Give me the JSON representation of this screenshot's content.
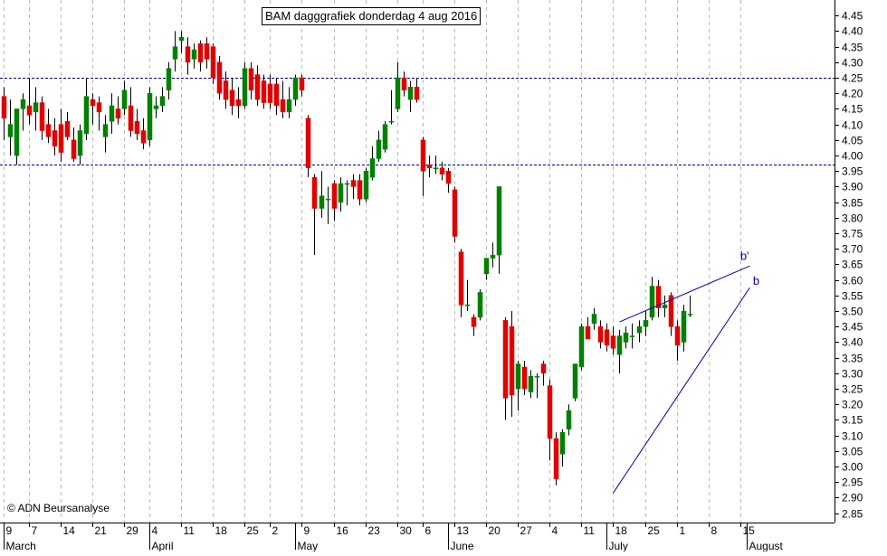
{
  "chart_data": {
    "type": "candlestick",
    "title": "BAM dagggrafiek donderdag 4 aug 2016",
    "copyright": "© ADN Beursanalyse",
    "ylim": [
      2.82,
      4.5
    ],
    "y_ticks": [
      2.85,
      2.9,
      2.95,
      3.0,
      3.05,
      3.1,
      3.15,
      3.2,
      3.25,
      3.3,
      3.35,
      3.4,
      3.45,
      3.5,
      3.55,
      3.6,
      3.65,
      3.7,
      3.75,
      3.8,
      3.85,
      3.9,
      3.95,
      4.0,
      4.05,
      4.1,
      4.15,
      4.2,
      4.25,
      4.3,
      4.35,
      4.4,
      4.45
    ],
    "y_tick_labels": [
      "2.85",
      "2.90",
      "2.95",
      "3.00",
      "3.05",
      "3.10",
      "3.15",
      "3.20",
      "3.25",
      "3.30",
      "3.35",
      "3.40",
      "3.45",
      "3.50",
      "3.55",
      "3.60",
      "3.65",
      "3.70",
      "3.75",
      "3.80",
      "3.85",
      "3.90",
      "3.95",
      "4.00",
      "4.05",
      "4.10",
      "4.15",
      "4.20",
      "4.25",
      "4.30",
      "4.35",
      "4.40",
      "4.45"
    ],
    "x_day_ticks": [
      "9",
      "7",
      "14",
      "21",
      "29",
      "4",
      "11",
      "18",
      "25",
      "2",
      "9",
      "16",
      "23",
      "30",
      "6",
      "13",
      "20",
      "27",
      "4",
      "11",
      "18",
      "25",
      "1",
      "8",
      "15"
    ],
    "x_month_labels": [
      "March",
      "April",
      "May",
      "June",
      "July",
      "August"
    ],
    "colors": {
      "up": "#008000",
      "down": "#e00000",
      "line": "#0000b0",
      "dashed": "#000080",
      "grid": "#b8b8b8"
    },
    "horizontal_lines": [
      4.25,
      3.97
    ],
    "annotations": [
      {
        "label": "b'",
        "x": 116,
        "y": 3.665
      },
      {
        "label": "b",
        "x": 118,
        "y": 3.585
      }
    ],
    "trendlines": [
      {
        "x1": 97,
        "y1": 3.465,
        "x2": 117.5,
        "y2": 3.645
      },
      {
        "x1": 96,
        "y1": 2.915,
        "x2": 117.5,
        "y2": 3.575
      }
    ],
    "candles": [
      {
        "o": 4.19,
        "h": 4.22,
        "l": 4.05,
        "c": 4.12
      },
      {
        "o": 4.06,
        "h": 4.18,
        "l": 4.0,
        "c": 4.1
      },
      {
        "o": 4.0,
        "h": 4.15,
        "l": 3.97,
        "c": 4.15
      },
      {
        "o": 4.15,
        "h": 4.2,
        "l": 4.08,
        "c": 4.18
      },
      {
        "o": 4.16,
        "h": 4.25,
        "l": 4.1,
        "c": 4.13
      },
      {
        "o": 4.14,
        "h": 4.22,
        "l": 4.08,
        "c": 4.17
      },
      {
        "o": 4.17,
        "h": 4.19,
        "l": 4.05,
        "c": 4.08
      },
      {
        "o": 4.1,
        "h": 4.15,
        "l": 4.04,
        "c": 4.06
      },
      {
        "o": 4.08,
        "h": 4.12,
        "l": 4.0,
        "c": 4.03
      },
      {
        "o": 4.1,
        "h": 4.15,
        "l": 3.98,
        "c": 4.01
      },
      {
        "o": 4.11,
        "h": 4.14,
        "l": 4.05,
        "c": 4.06
      },
      {
        "o": 4.05,
        "h": 4.09,
        "l": 3.98,
        "c": 3.99
      },
      {
        "o": 4.0,
        "h": 4.1,
        "l": 3.97,
        "c": 4.08
      },
      {
        "o": 4.07,
        "h": 4.25,
        "l": 4.05,
        "c": 4.19
      },
      {
        "o": 4.18,
        "h": 4.2,
        "l": 4.1,
        "c": 4.16
      },
      {
        "o": 4.17,
        "h": 4.19,
        "l": 4.08,
        "c": 4.14
      },
      {
        "o": 4.06,
        "h": 4.13,
        "l": 4.01,
        "c": 4.1
      },
      {
        "o": 4.11,
        "h": 4.2,
        "l": 4.07,
        "c": 4.16
      },
      {
        "o": 4.15,
        "h": 4.19,
        "l": 4.1,
        "c": 4.12
      },
      {
        "o": 4.15,
        "h": 4.24,
        "l": 4.13,
        "c": 4.21
      },
      {
        "o": 4.16,
        "h": 4.22,
        "l": 4.06,
        "c": 4.08
      },
      {
        "o": 4.11,
        "h": 4.15,
        "l": 4.05,
        "c": 4.07
      },
      {
        "o": 4.08,
        "h": 4.12,
        "l": 4.02,
        "c": 4.04
      },
      {
        "o": 4.05,
        "h": 4.22,
        "l": 4.03,
        "c": 4.2
      },
      {
        "o": 4.15,
        "h": 4.19,
        "l": 4.12,
        "c": 4.16
      },
      {
        "o": 4.16,
        "h": 4.22,
        "l": 4.14,
        "c": 4.19
      },
      {
        "o": 4.21,
        "h": 4.3,
        "l": 4.18,
        "c": 4.28
      },
      {
        "o": 4.31,
        "h": 4.4,
        "l": 4.27,
        "c": 4.35
      },
      {
        "o": 4.37,
        "h": 4.4,
        "l": 4.33,
        "c": 4.38
      },
      {
        "o": 4.35,
        "h": 4.38,
        "l": 4.26,
        "c": 4.3
      },
      {
        "o": 4.31,
        "h": 4.36,
        "l": 4.28,
        "c": 4.34
      },
      {
        "o": 4.36,
        "h": 4.37,
        "l": 4.27,
        "c": 4.3
      },
      {
        "o": 4.36,
        "h": 4.38,
        "l": 4.28,
        "c": 4.31
      },
      {
        "o": 4.35,
        "h": 4.36,
        "l": 4.23,
        "c": 4.25
      },
      {
        "o": 4.3,
        "h": 4.32,
        "l": 4.18,
        "c": 4.2
      },
      {
        "o": 4.24,
        "h": 4.27,
        "l": 4.15,
        "c": 4.18
      },
      {
        "o": 4.21,
        "h": 4.25,
        "l": 4.13,
        "c": 4.16
      },
      {
        "o": 4.18,
        "h": 4.22,
        "l": 4.12,
        "c": 4.16
      },
      {
        "o": 4.16,
        "h": 4.3,
        "l": 4.15,
        "c": 4.28
      },
      {
        "o": 4.28,
        "h": 4.3,
        "l": 4.18,
        "c": 4.21
      },
      {
        "o": 4.26,
        "h": 4.29,
        "l": 4.16,
        "c": 4.18
      },
      {
        "o": 4.24,
        "h": 4.26,
        "l": 4.15,
        "c": 4.17
      },
      {
        "o": 4.23,
        "h": 4.26,
        "l": 4.15,
        "c": 4.17
      },
      {
        "o": 4.23,
        "h": 4.25,
        "l": 4.13,
        "c": 4.16
      },
      {
        "o": 4.18,
        "h": 4.24,
        "l": 4.12,
        "c": 4.14
      },
      {
        "o": 4.14,
        "h": 4.22,
        "l": 4.12,
        "c": 4.18
      },
      {
        "o": 4.18,
        "h": 4.26,
        "l": 4.16,
        "c": 4.25
      },
      {
        "o": 4.25,
        "h": 4.26,
        "l": 4.19,
        "c": 4.21
      },
      {
        "o": 4.12,
        "h": 4.13,
        "l": 3.93,
        "c": 3.96
      },
      {
        "o": 3.93,
        "h": 3.94,
        "l": 3.68,
        "c": 3.83
      },
      {
        "o": 3.83,
        "h": 3.95,
        "l": 3.8,
        "c": 3.87
      },
      {
        "o": 3.86,
        "h": 3.9,
        "l": 3.78,
        "c": 3.86
      },
      {
        "o": 3.91,
        "h": 3.92,
        "l": 3.79,
        "c": 3.83
      },
      {
        "o": 3.85,
        "h": 3.93,
        "l": 3.82,
        "c": 3.91
      },
      {
        "o": 3.91,
        "h": 3.92,
        "l": 3.84,
        "c": 3.91
      },
      {
        "o": 3.92,
        "h": 3.94,
        "l": 3.86,
        "c": 3.9
      },
      {
        "o": 3.92,
        "h": 3.94,
        "l": 3.84,
        "c": 3.86
      },
      {
        "o": 3.86,
        "h": 3.96,
        "l": 3.85,
        "c": 3.95
      },
      {
        "o": 3.93,
        "h": 4.03,
        "l": 3.92,
        "c": 3.99
      },
      {
        "o": 3.99,
        "h": 4.08,
        "l": 3.98,
        "c": 4.05
      },
      {
        "o": 4.02,
        "h": 4.11,
        "l": 4.01,
        "c": 4.1
      },
      {
        "o": 4.11,
        "h": 4.21,
        "l": 4.1,
        "c": 4.11
      },
      {
        "o": 4.15,
        "h": 4.3,
        "l": 4.14,
        "c": 4.25
      },
      {
        "o": 4.25,
        "h": 4.27,
        "l": 4.19,
        "c": 4.21
      },
      {
        "o": 4.18,
        "h": 4.24,
        "l": 4.14,
        "c": 4.22
      },
      {
        "o": 4.22,
        "h": 4.25,
        "l": 4.17,
        "c": 4.18
      },
      {
        "o": 4.05,
        "h": 4.06,
        "l": 3.87,
        "c": 3.95
      },
      {
        "o": 3.97,
        "h": 4.0,
        "l": 3.93,
        "c": 3.96
      },
      {
        "o": 3.96,
        "h": 4.0,
        "l": 3.94,
        "c": 3.96
      },
      {
        "o": 3.96,
        "h": 3.98,
        "l": 3.92,
        "c": 3.94
      },
      {
        "o": 3.95,
        "h": 3.96,
        "l": 3.88,
        "c": 3.91
      },
      {
        "o": 3.89,
        "h": 3.9,
        "l": 3.72,
        "c": 3.74
      },
      {
        "o": 3.69,
        "h": 3.7,
        "l": 3.48,
        "c": 3.52
      },
      {
        "o": 3.52,
        "h": 3.6,
        "l": 3.5,
        "c": 3.52
      },
      {
        "o": 3.48,
        "h": 3.49,
        "l": 3.42,
        "c": 3.45
      },
      {
        "o": 3.48,
        "h": 3.57,
        "l": 3.47,
        "c": 3.56
      },
      {
        "o": 3.62,
        "h": 3.67,
        "l": 3.6,
        "c": 3.67
      },
      {
        "o": 3.67,
        "h": 3.72,
        "l": 3.64,
        "c": 3.68
      },
      {
        "o": 3.68,
        "h": 3.9,
        "l": 3.62,
        "c": 3.9
      },
      {
        "o": 3.47,
        "h": 3.48,
        "l": 3.15,
        "c": 3.22
      },
      {
        "o": 3.45,
        "h": 3.5,
        "l": 3.16,
        "c": 3.23
      },
      {
        "o": 3.25,
        "h": 3.34,
        "l": 3.18,
        "c": 3.33
      },
      {
        "o": 3.32,
        "h": 3.34,
        "l": 3.23,
        "c": 3.25
      },
      {
        "o": 3.24,
        "h": 3.31,
        "l": 3.22,
        "c": 3.29
      },
      {
        "o": 3.29,
        "h": 3.3,
        "l": 3.22,
        "c": 3.29
      },
      {
        "o": 3.33,
        "h": 3.34,
        "l": 3.26,
        "c": 3.3
      },
      {
        "o": 3.26,
        "h": 3.28,
        "l": 3.02,
        "c": 3.09
      },
      {
        "o": 3.09,
        "h": 3.11,
        "l": 2.94,
        "c": 2.96
      },
      {
        "o": 3.04,
        "h": 3.12,
        "l": 3.0,
        "c": 3.11
      },
      {
        "o": 3.12,
        "h": 3.2,
        "l": 3.1,
        "c": 3.18
      },
      {
        "o": 3.22,
        "h": 3.33,
        "l": 3.21,
        "c": 3.33
      },
      {
        "o": 3.32,
        "h": 3.46,
        "l": 3.31,
        "c": 3.45
      },
      {
        "o": 3.45,
        "h": 3.48,
        "l": 3.41,
        "c": 3.41
      },
      {
        "o": 3.46,
        "h": 3.51,
        "l": 3.44,
        "c": 3.49
      },
      {
        "o": 3.45,
        "h": 3.47,
        "l": 3.38,
        "c": 3.4
      },
      {
        "o": 3.44,
        "h": 3.46,
        "l": 3.37,
        "c": 3.39
      },
      {
        "o": 3.42,
        "h": 3.45,
        "l": 3.36,
        "c": 3.38
      },
      {
        "o": 3.36,
        "h": 3.44,
        "l": 3.3,
        "c": 3.42
      },
      {
        "o": 3.4,
        "h": 3.45,
        "l": 3.38,
        "c": 3.43
      },
      {
        "o": 3.42,
        "h": 3.46,
        "l": 3.38,
        "c": 3.42
      },
      {
        "o": 3.43,
        "h": 3.47,
        "l": 3.4,
        "c": 3.45
      },
      {
        "o": 3.45,
        "h": 3.5,
        "l": 3.42,
        "c": 3.47
      },
      {
        "o": 3.48,
        "h": 3.61,
        "l": 3.47,
        "c": 3.58
      },
      {
        "o": 3.58,
        "h": 3.6,
        "l": 3.48,
        "c": 3.51
      },
      {
        "o": 3.51,
        "h": 3.55,
        "l": 3.48,
        "c": 3.52
      },
      {
        "o": 3.55,
        "h": 3.56,
        "l": 3.42,
        "c": 3.45
      },
      {
        "o": 3.45,
        "h": 3.47,
        "l": 3.34,
        "c": 3.39
      },
      {
        "o": 3.4,
        "h": 3.52,
        "l": 3.37,
        "c": 3.5
      },
      {
        "o": 3.49,
        "h": 3.55,
        "l": 3.48,
        "c": 3.49
      }
    ]
  }
}
